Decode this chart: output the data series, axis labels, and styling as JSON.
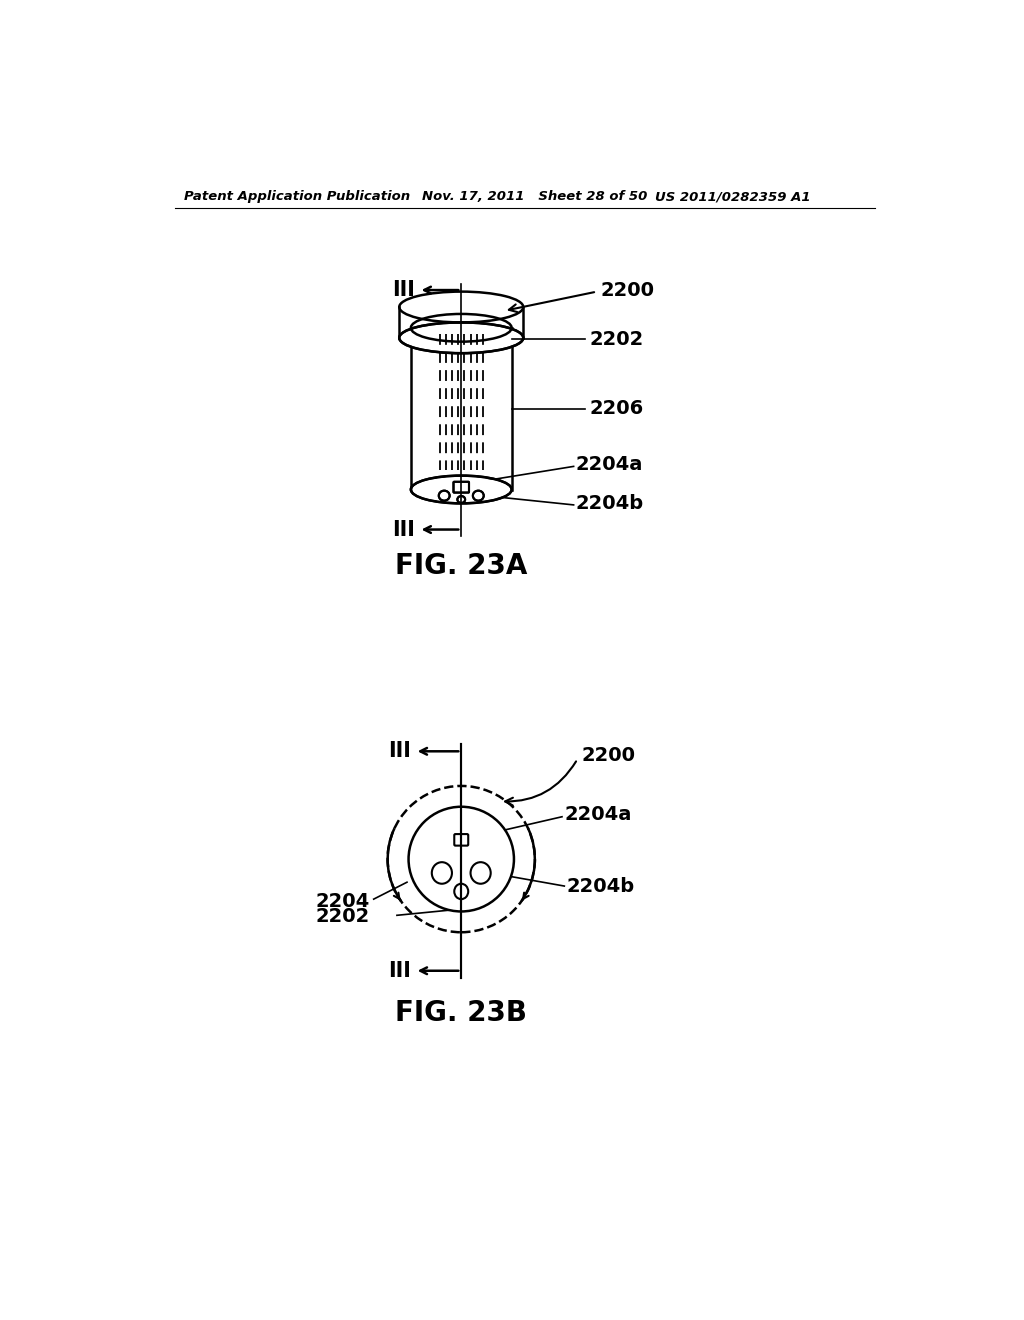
{
  "bg_color": "#ffffff",
  "line_color": "#000000",
  "header_text": "Patent Application Publication",
  "header_date": "Nov. 17, 2011   Sheet 28 of 50",
  "header_patent": "US 2011/0282359 A1",
  "fig23a_title": "FIG. 23A",
  "fig23b_title": "FIG. 23B",
  "label_2200": "2200",
  "label_2202": "2202",
  "label_2206": "2206",
  "label_2204a": "2204a",
  "label_2204b": "2204b",
  "label_2204": "2204",
  "label_III": "III"
}
